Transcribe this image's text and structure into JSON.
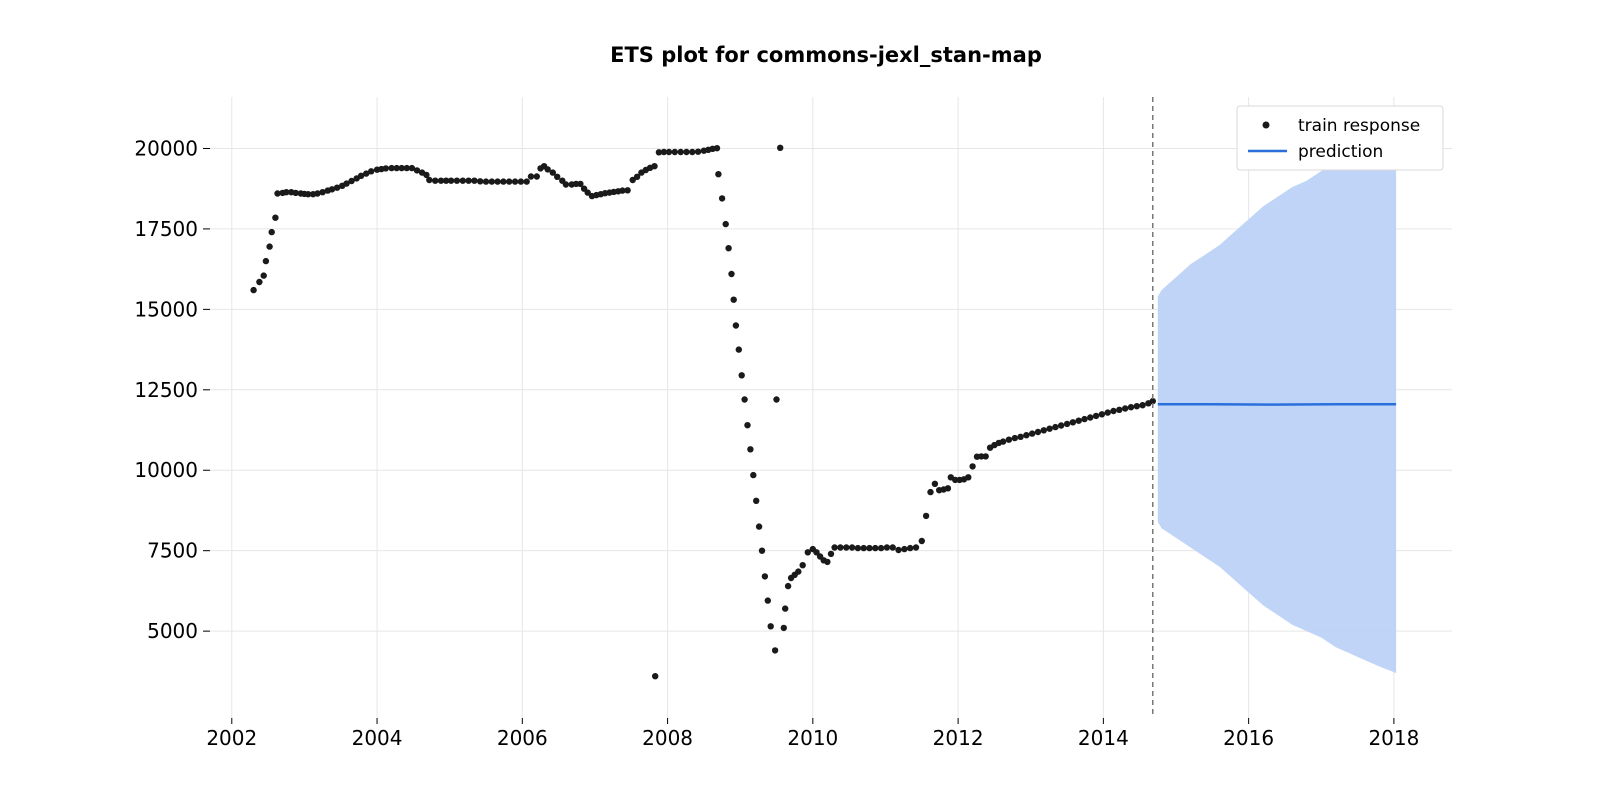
{
  "chart_data": {
    "type": "scatter",
    "title": "ETS plot for commons-jexl_stan-map",
    "xlabel": "",
    "ylabel": "",
    "xlim": [
      2001.7,
      2018.8
    ],
    "ylim": [
      2300,
      21600
    ],
    "x_ticks": [
      "2002",
      "2004",
      "2006",
      "2008",
      "2010",
      "2012",
      "2014",
      "2016",
      "2018"
    ],
    "y_ticks": [
      "5000",
      "7500",
      "10000",
      "12500",
      "15000",
      "17500",
      "20000"
    ],
    "grid": true,
    "legend_position": "top-right",
    "colors": {
      "train": "#1a1a1a",
      "prediction": "#2a6fdb",
      "interval": "#bcd2f7",
      "cutoff": "#777777"
    },
    "cutoff_x": 2014.68,
    "series": [
      {
        "name": "train response",
        "kind": "scatter",
        "points": [
          [
            2002.3,
            15600
          ],
          [
            2002.38,
            15850
          ],
          [
            2002.44,
            16050
          ],
          [
            2002.47,
            16500
          ],
          [
            2002.52,
            16950
          ],
          [
            2002.55,
            17400
          ],
          [
            2002.6,
            17850
          ],
          [
            2002.63,
            18600
          ],
          [
            2002.7,
            18620
          ],
          [
            2002.75,
            18640
          ],
          [
            2002.82,
            18640
          ],
          [
            2002.88,
            18620
          ],
          [
            2002.95,
            18600
          ],
          [
            2003.0,
            18590
          ],
          [
            2003.05,
            18580
          ],
          [
            2003.12,
            18580
          ],
          [
            2003.18,
            18600
          ],
          [
            2003.25,
            18640
          ],
          [
            2003.32,
            18690
          ],
          [
            2003.38,
            18730
          ],
          [
            2003.45,
            18780
          ],
          [
            2003.52,
            18840
          ],
          [
            2003.58,
            18910
          ],
          [
            2003.65,
            18990
          ],
          [
            2003.72,
            19070
          ],
          [
            2003.78,
            19150
          ],
          [
            2003.85,
            19220
          ],
          [
            2003.92,
            19290
          ],
          [
            2004.0,
            19340
          ],
          [
            2004.06,
            19360
          ],
          [
            2004.12,
            19380
          ],
          [
            2004.2,
            19390
          ],
          [
            2004.27,
            19390
          ],
          [
            2004.34,
            19390
          ],
          [
            2004.41,
            19390
          ],
          [
            2004.48,
            19390
          ],
          [
            2004.55,
            19320
          ],
          [
            2004.62,
            19250
          ],
          [
            2004.68,
            19180
          ],
          [
            2004.72,
            19020
          ],
          [
            2004.8,
            19000
          ],
          [
            2004.88,
            19000
          ],
          [
            2004.95,
            19000
          ],
          [
            2005.02,
            19000
          ],
          [
            2005.1,
            19000
          ],
          [
            2005.18,
            19000
          ],
          [
            2005.26,
            19000
          ],
          [
            2005.34,
            19000
          ],
          [
            2005.42,
            18980
          ],
          [
            2005.5,
            18970
          ],
          [
            2005.58,
            18970
          ],
          [
            2005.66,
            18970
          ],
          [
            2005.74,
            18970
          ],
          [
            2005.82,
            18970
          ],
          [
            2005.9,
            18970
          ],
          [
            2005.98,
            18970
          ],
          [
            2006.06,
            18970
          ],
          [
            2006.12,
            19130
          ],
          [
            2006.2,
            19130
          ],
          [
            2006.25,
            19380
          ],
          [
            2006.3,
            19450
          ],
          [
            2006.35,
            19350
          ],
          [
            2006.42,
            19250
          ],
          [
            2006.48,
            19120
          ],
          [
            2006.55,
            19000
          ],
          [
            2006.6,
            18880
          ],
          [
            2006.68,
            18880
          ],
          [
            2006.74,
            18900
          ],
          [
            2006.8,
            18900
          ],
          [
            2006.85,
            18750
          ],
          [
            2006.9,
            18630
          ],
          [
            2006.96,
            18520
          ],
          [
            2007.02,
            18550
          ],
          [
            2007.08,
            18580
          ],
          [
            2007.14,
            18610
          ],
          [
            2007.2,
            18630
          ],
          [
            2007.26,
            18650
          ],
          [
            2007.32,
            18670
          ],
          [
            2007.38,
            18690
          ],
          [
            2007.45,
            18700
          ],
          [
            2007.52,
            19020
          ],
          [
            2007.58,
            19120
          ],
          [
            2007.64,
            19250
          ],
          [
            2007.7,
            19330
          ],
          [
            2007.76,
            19400
          ],
          [
            2007.82,
            19450
          ],
          [
            2007.83,
            3600
          ],
          [
            2007.88,
            19880
          ],
          [
            2007.95,
            19890
          ],
          [
            2008.02,
            19890
          ],
          [
            2008.1,
            19890
          ],
          [
            2008.18,
            19890
          ],
          [
            2008.26,
            19890
          ],
          [
            2008.34,
            19890
          ],
          [
            2008.42,
            19900
          ],
          [
            2008.5,
            19930
          ],
          [
            2008.56,
            19960
          ],
          [
            2008.62,
            19990
          ],
          [
            2008.68,
            20010
          ],
          [
            2008.7,
            19200
          ],
          [
            2008.75,
            18450
          ],
          [
            2008.8,
            17650
          ],
          [
            2008.84,
            16900
          ],
          [
            2008.88,
            16100
          ],
          [
            2008.91,
            15300
          ],
          [
            2008.94,
            14500
          ],
          [
            2008.98,
            13750
          ],
          [
            2009.02,
            12950
          ],
          [
            2009.06,
            12200
          ],
          [
            2009.1,
            11400
          ],
          [
            2009.14,
            10650
          ],
          [
            2009.18,
            9850
          ],
          [
            2009.22,
            9050
          ],
          [
            2009.26,
            8250
          ],
          [
            2009.3,
            7500
          ],
          [
            2009.34,
            6700
          ],
          [
            2009.38,
            5950
          ],
          [
            2009.42,
            5150
          ],
          [
            2009.48,
            4400
          ],
          [
            2009.5,
            12200
          ],
          [
            2009.55,
            20020
          ],
          [
            2009.6,
            5100
          ],
          [
            2009.62,
            5700
          ],
          [
            2009.66,
            6400
          ],
          [
            2009.7,
            6650
          ],
          [
            2009.75,
            6750
          ],
          [
            2009.8,
            6850
          ],
          [
            2009.86,
            7050
          ],
          [
            2009.93,
            7450
          ],
          [
            2010.0,
            7550
          ],
          [
            2010.05,
            7450
          ],
          [
            2010.1,
            7320
          ],
          [
            2010.15,
            7200
          ],
          [
            2010.2,
            7150
          ],
          [
            2010.25,
            7400
          ],
          [
            2010.3,
            7600
          ],
          [
            2010.38,
            7600
          ],
          [
            2010.46,
            7600
          ],
          [
            2010.54,
            7600
          ],
          [
            2010.62,
            7580
          ],
          [
            2010.7,
            7580
          ],
          [
            2010.78,
            7580
          ],
          [
            2010.86,
            7580
          ],
          [
            2010.94,
            7580
          ],
          [
            2011.02,
            7600
          ],
          [
            2011.1,
            7600
          ],
          [
            2011.18,
            7520
          ],
          [
            2011.26,
            7550
          ],
          [
            2011.34,
            7580
          ],
          [
            2011.42,
            7600
          ],
          [
            2011.5,
            7800
          ],
          [
            2011.56,
            8580
          ],
          [
            2011.62,
            9320
          ],
          [
            2011.68,
            9580
          ],
          [
            2011.74,
            9380
          ],
          [
            2011.8,
            9400
          ],
          [
            2011.86,
            9440
          ],
          [
            2011.9,
            9780
          ],
          [
            2011.96,
            9700
          ],
          [
            2012.02,
            9700
          ],
          [
            2012.08,
            9720
          ],
          [
            2012.14,
            9780
          ],
          [
            2012.2,
            10120
          ],
          [
            2012.26,
            10420
          ],
          [
            2012.32,
            10430
          ],
          [
            2012.38,
            10430
          ],
          [
            2012.44,
            10700
          ],
          [
            2012.5,
            10780
          ],
          [
            2012.56,
            10850
          ],
          [
            2012.62,
            10890
          ],
          [
            2012.7,
            10950
          ],
          [
            2012.78,
            11000
          ],
          [
            2012.86,
            11040
          ],
          [
            2012.94,
            11090
          ],
          [
            2013.02,
            11140
          ],
          [
            2013.1,
            11190
          ],
          [
            2013.18,
            11240
          ],
          [
            2013.26,
            11290
          ],
          [
            2013.34,
            11340
          ],
          [
            2013.42,
            11390
          ],
          [
            2013.5,
            11440
          ],
          [
            2013.58,
            11490
          ],
          [
            2013.66,
            11540
          ],
          [
            2013.74,
            11590
          ],
          [
            2013.82,
            11640
          ],
          [
            2013.9,
            11690
          ],
          [
            2013.98,
            11740
          ],
          [
            2014.06,
            11790
          ],
          [
            2014.14,
            11840
          ],
          [
            2014.22,
            11880
          ],
          [
            2014.3,
            11920
          ],
          [
            2014.38,
            11960
          ],
          [
            2014.46,
            11990
          ],
          [
            2014.54,
            12020
          ],
          [
            2014.62,
            12080
          ],
          [
            2014.68,
            12150
          ]
        ]
      },
      {
        "name": "prediction",
        "kind": "line",
        "x": [
          2014.75,
          2015.5,
          2016.3,
          2017.2,
          2018.03
        ],
        "values": [
          12050,
          12050,
          12040,
          12050,
          12050
        ]
      }
    ],
    "interval": {
      "x": [
        2014.75,
        2014.8,
        2015.0,
        2015.2,
        2015.4,
        2015.6,
        2015.8,
        2016.0,
        2016.2,
        2016.4,
        2016.6,
        2016.8,
        2017.0,
        2017.2,
        2017.4,
        2017.6,
        2017.8,
        2018.03
      ],
      "upper": [
        15400,
        15600,
        16000,
        16400,
        16700,
        17000,
        17400,
        17800,
        18200,
        18500,
        18800,
        19000,
        19300,
        19500,
        19700,
        20000,
        20300,
        20600
      ],
      "lower": [
        8400,
        8200,
        7900,
        7600,
        7300,
        7000,
        6600,
        6200,
        5800,
        5500,
        5200,
        5000,
        4800,
        4500,
        4300,
        4100,
        3900,
        3700
      ]
    }
  }
}
